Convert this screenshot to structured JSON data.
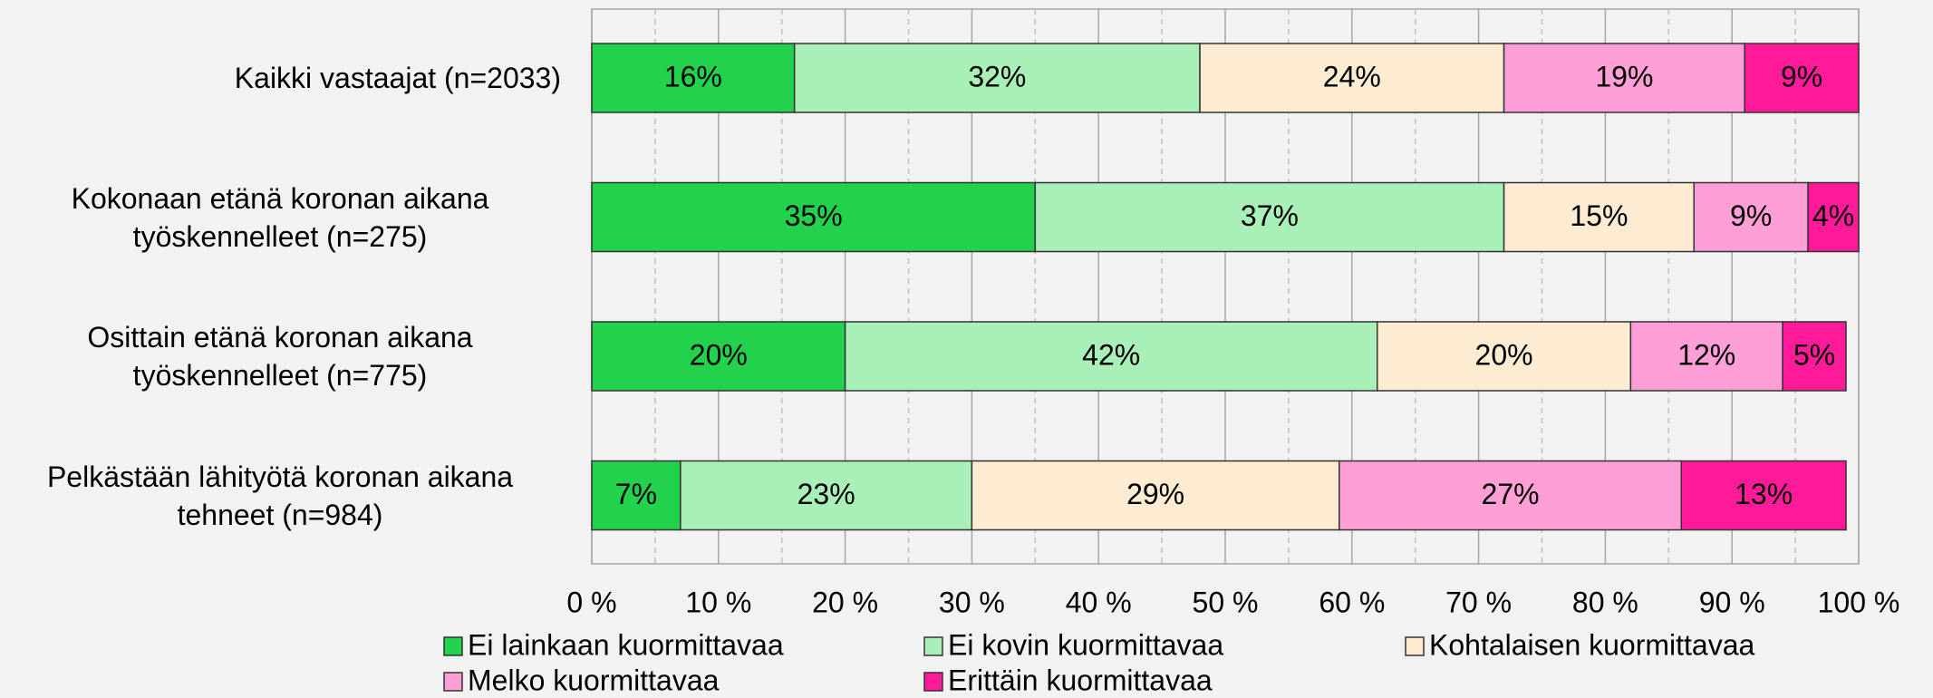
{
  "chart_data": {
    "type": "stacked_barh",
    "categories": [
      "Kaikki vastaajat (n=2033)",
      "Kokonaan etänä koronan aikana työskennelleet (n=275)",
      "Osittain etänä koronan aikana työskennelleet (n=775)",
      "Pelkästään lähityötä koronan aikana tehneet (n=984)"
    ],
    "series": [
      {
        "name": "Ei lainkaan kuormittavaa",
        "color": "#22d14c",
        "values": [
          16,
          35,
          20,
          7
        ],
        "value_labels": [
          "16%",
          "35%",
          "20%",
          "7%"
        ]
      },
      {
        "name": "Ei kovin kuormittavaa",
        "color": "#a8f0b8",
        "values": [
          32,
          37,
          42,
          23
        ],
        "value_labels": [
          "32%",
          "37%",
          "42%",
          "23%"
        ]
      },
      {
        "name": "Kohtalaisen kuormittavaa",
        "color": "#fdebd2",
        "values": [
          24,
          15,
          20,
          29
        ],
        "value_labels": [
          "24%",
          "15%",
          "20%",
          "29%"
        ]
      },
      {
        "name": "Melko kuormittavaa",
        "color": "#ff9fd8",
        "values": [
          19,
          9,
          12,
          27
        ],
        "value_labels": [
          "19%",
          "9%",
          "12%",
          "27%"
        ]
      },
      {
        "name": "Erittäin kuormittavaa",
        "color": "#ff1a9a",
        "values": [
          9,
          4,
          5,
          13
        ],
        "value_labels": [
          "9%",
          "4%",
          "5%",
          "13%"
        ]
      }
    ],
    "xlim": [
      0,
      100
    ],
    "xticks": [
      {
        "value": 0,
        "label": "0 %"
      },
      {
        "value": 10,
        "label": "10 %"
      },
      {
        "value": 20,
        "label": "20 %"
      },
      {
        "value": 30,
        "label": "30 %"
      },
      {
        "value": 40,
        "label": "40 %"
      },
      {
        "value": 50,
        "label": "50 %"
      },
      {
        "value": 60,
        "label": "60 %"
      },
      {
        "value": 70,
        "label": "70 %"
      },
      {
        "value": 80,
        "label": "80 %"
      },
      {
        "value": 90,
        "label": "90 %"
      },
      {
        "value": 100,
        "label": "100 %"
      }
    ],
    "minor_grid": [
      5,
      15,
      25,
      35,
      45,
      55,
      65,
      75,
      85,
      95
    ],
    "grid": true,
    "legend": "bottom"
  }
}
